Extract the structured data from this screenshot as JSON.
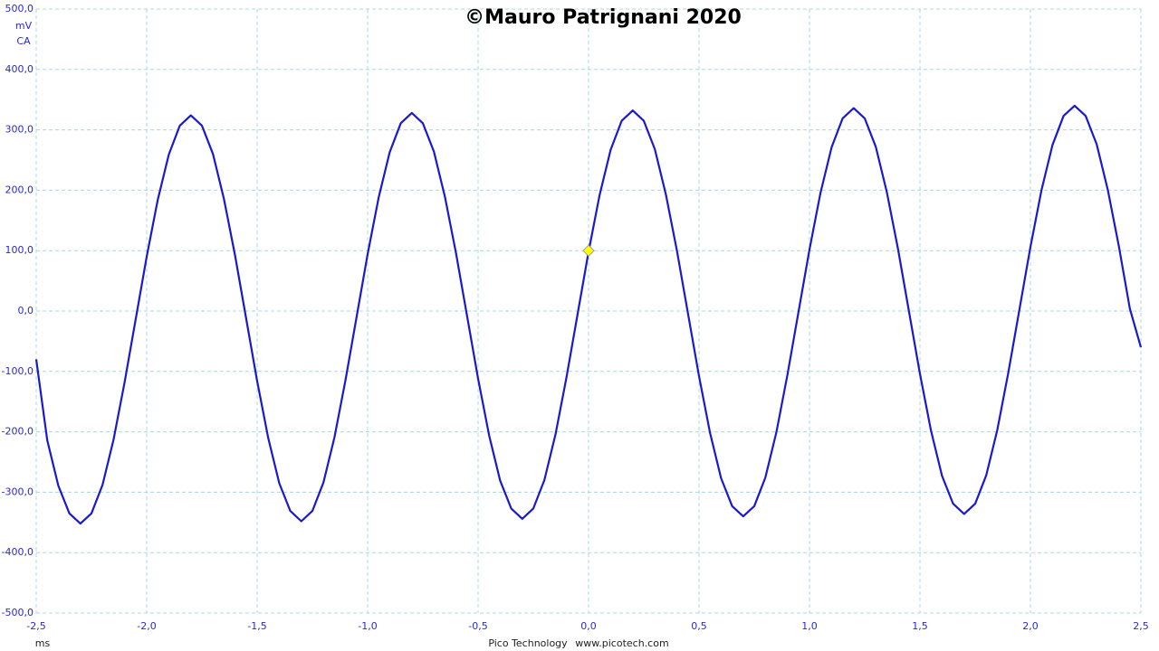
{
  "chart_data": {
    "type": "line",
    "title": "©Mauro Patrignani 2020",
    "y_unit": "mV",
    "coupling": "CA",
    "xlabel": "ms",
    "footer": [
      "Pico Technology",
      "www.picotech.com"
    ],
    "color": "#1a1acc",
    "grid": true,
    "xlim": [
      -2.5,
      2.5
    ],
    "ylim": [
      -500,
      500
    ],
    "xticks": [
      {
        "value": -2.5,
        "label": "-2,5"
      },
      {
        "value": -2,
        "label": "-2,0"
      },
      {
        "value": -1.5,
        "label": "-1,5"
      },
      {
        "value": -1,
        "label": "-1,0"
      },
      {
        "value": -0.5,
        "label": "-0,5"
      },
      {
        "value": 0,
        "label": "0,0"
      },
      {
        "value": 0.5,
        "label": "0,5"
      },
      {
        "value": 1,
        "label": "1,0"
      },
      {
        "value": 1.5,
        "label": "1,5"
      },
      {
        "value": 2,
        "label": "2,0"
      },
      {
        "value": 2.5,
        "label": "2,5"
      }
    ],
    "yticks": [
      {
        "value": 500,
        "label": "500,0"
      },
      {
        "value": 400,
        "label": "400,0"
      },
      {
        "value": 300,
        "label": "300,0"
      },
      {
        "value": 200,
        "label": "200,0"
      },
      {
        "value": 100,
        "label": "100,0"
      },
      {
        "value": 0,
        "label": "0,0"
      },
      {
        "value": -100,
        "label": "-100,0"
      },
      {
        "value": -200,
        "label": "-200,0"
      },
      {
        "value": -300,
        "label": "-300,0"
      },
      {
        "value": -400,
        "label": "-400,0"
      },
      {
        "value": -500,
        "label": "-500,0"
      }
    ],
    "x": [
      -2.5,
      -2.45,
      -2.4,
      -2.35,
      -2.3,
      -2.25,
      -2.2,
      -2.15,
      -2.1,
      -2.05,
      -2,
      -1.95,
      -1.9,
      -1.85,
      -1.8,
      -1.75,
      -1.7,
      -1.65,
      -1.6,
      -1.55,
      -1.5,
      -1.45,
      -1.4,
      -1.35,
      -1.3,
      -1.25,
      -1.2,
      -1.15,
      -1.1,
      -1.05,
      -1,
      -0.95,
      -0.9,
      -0.85,
      -0.8,
      -0.75,
      -0.7,
      -0.65,
      -0.6,
      -0.55,
      -0.5,
      -0.45,
      -0.4,
      -0.35,
      -0.3,
      -0.25,
      -0.2,
      -0.15,
      -0.1,
      -0.05,
      0,
      0.05,
      0.1,
      0.15,
      0.2,
      0.25,
      0.3,
      0.35,
      0.4,
      0.45,
      0.5,
      0.55,
      0.6,
      0.65,
      0.7,
      0.75,
      0.8,
      0.85,
      0.9,
      0.95,
      1,
      1.05,
      1.1,
      1.15,
      1.2,
      1.25,
      1.3,
      1.35,
      1.4,
      1.45,
      1.5,
      1.55,
      1.6,
      1.65,
      1.7,
      1.75,
      1.8,
      1.85,
      1.9,
      1.95,
      2,
      2.05,
      2.1,
      2.15,
      2.2,
      2.25,
      2.3,
      2.35,
      2.4,
      2.45,
      2.5
    ],
    "values": [
      -80,
      -214,
      -289,
      -335,
      -352,
      -335,
      -288,
      -213,
      -118,
      -14,
      90,
      184,
      259,
      307,
      324,
      307,
      260,
      185,
      92,
      -12,
      -116,
      -210,
      -285,
      -331,
      -348,
      -331,
      -284,
      -209,
      -114,
      -10,
      94,
      188,
      263,
      311,
      328,
      311,
      264,
      189,
      96,
      -8,
      -112,
      -206,
      -281,
      -327,
      -344,
      -327,
      -280,
      -205,
      -110,
      -6,
      98,
      192,
      267,
      315,
      332,
      315,
      268,
      193,
      100,
      -4,
      -108,
      -202,
      -277,
      -323,
      -340,
      -323,
      -276,
      -201,
      -106,
      -2,
      102,
      196,
      271,
      319,
      336,
      319,
      272,
      197,
      104,
      0,
      -104,
      -198,
      -273,
      -319,
      -336,
      -319,
      -272,
      -197,
      -102,
      2,
      106,
      200,
      275,
      323,
      340,
      323,
      276,
      201,
      108,
      4,
      -60
    ],
    "marker": {
      "x": 0,
      "y": 100,
      "color": "#ffff00"
    }
  }
}
